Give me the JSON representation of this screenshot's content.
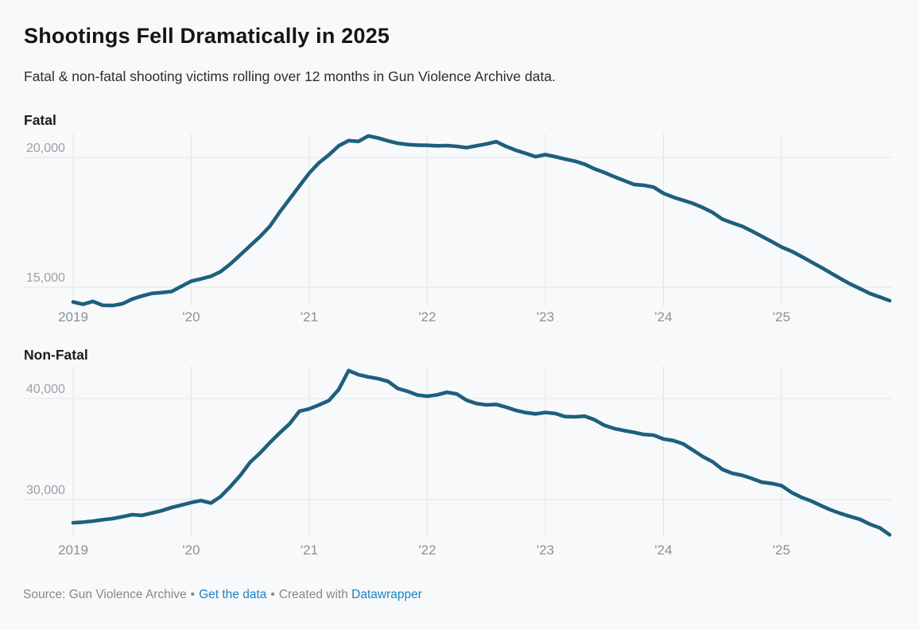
{
  "header": {
    "title": "Shootings Fell Dramatically in 2025",
    "subtitle": "Fatal & non-fatal shooting victims rolling over 12 months in Gun Violence Archive data."
  },
  "footer": {
    "source_text": "Source: Gun Violence Archive",
    "separator": "•",
    "get_data_label": "Get the data",
    "created_with_text": "Created with",
    "datawrapper_label": "Datawrapper"
  },
  "colors": {
    "background": "#f8f9fa",
    "line": "#1e5f7d",
    "grid": "#e3e5e7",
    "y_tick_label": "#9da1a5",
    "x_tick_label": "#8d9094",
    "link": "#1a82c4",
    "footer_text": "#85888c"
  },
  "chart_data": [
    {
      "type": "line",
      "title": "Fatal",
      "x_start": "2019-01",
      "x_step_months": 1,
      "x_tick_labels": [
        "2019",
        "'20",
        "'21",
        "'22",
        "'23",
        "'24",
        "'25"
      ],
      "y_ticks": [
        20000,
        15000
      ],
      "y_tick_labels": [
        "20,000",
        "15,000"
      ],
      "ylim": [
        13900,
        21100
      ],
      "grid": "on",
      "legend": "none",
      "series": [
        {
          "name": "Fatal",
          "values": [
            14430,
            14340,
            14450,
            14300,
            14290,
            14360,
            14540,
            14660,
            14760,
            14790,
            14830,
            15030,
            15230,
            15320,
            15420,
            15600,
            15900,
            16250,
            16600,
            16950,
            17350,
            17900,
            18400,
            18900,
            19400,
            19800,
            20100,
            20450,
            20650,
            20620,
            20830,
            20750,
            20640,
            20550,
            20500,
            20480,
            20470,
            20450,
            20460,
            20430,
            20380,
            20450,
            20520,
            20610,
            20430,
            20280,
            20160,
            20030,
            20110,
            20030,
            19940,
            19860,
            19740,
            19560,
            19420,
            19260,
            19110,
            18960,
            18930,
            18860,
            18620,
            18470,
            18350,
            18230,
            18070,
            17880,
            17620,
            17480,
            17350,
            17160,
            16960,
            16760,
            16550,
            16390,
            16190,
            15980,
            15770,
            15550,
            15330,
            15120,
            14940,
            14750,
            14620,
            14480
          ]
        }
      ]
    },
    {
      "type": "line",
      "title": "Non-Fatal",
      "x_start": "2019-01",
      "x_step_months": 1,
      "x_tick_labels": [
        "2019",
        "'20",
        "'21",
        "'22",
        "'23",
        "'24",
        "'25"
      ],
      "y_ticks": [
        40000,
        30000
      ],
      "y_tick_labels": [
        "40,000",
        "30,000"
      ],
      "ylim": [
        26000,
        43500
      ],
      "grid": "on",
      "legend": "none",
      "series": [
        {
          "name": "Non-Fatal",
          "values": [
            27700,
            27760,
            27870,
            28000,
            28110,
            28300,
            28500,
            28430,
            28660,
            28900,
            29210,
            29450,
            29700,
            29900,
            29650,
            30300,
            31300,
            32400,
            33700,
            34600,
            35640,
            36600,
            37500,
            38740,
            38980,
            39370,
            39800,
            40900,
            42760,
            42360,
            42130,
            41970,
            41700,
            40990,
            40710,
            40350,
            40230,
            40360,
            40620,
            40450,
            39830,
            39500,
            39370,
            39420,
            39150,
            38830,
            38610,
            38480,
            38620,
            38520,
            38210,
            38190,
            38250,
            37900,
            37350,
            37030,
            36830,
            36650,
            36440,
            36380,
            35990,
            35840,
            35510,
            34900,
            34250,
            33740,
            32980,
            32600,
            32400,
            32080,
            31720,
            31590,
            31380,
            30720,
            30230,
            29870,
            29410,
            28980,
            28620,
            28320,
            28030,
            27550,
            27200,
            26500
          ]
        }
      ]
    }
  ]
}
